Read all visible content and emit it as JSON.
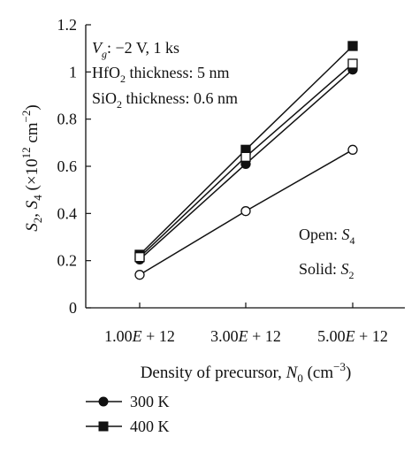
{
  "chart_data": {
    "type": "line",
    "x": [
      1000000000000.0,
      3000000000000.0,
      5000000000000.0
    ],
    "x_tick_labels": [
      {
        "mant": "1.00",
        "e": "E",
        "rest": " + 12"
      },
      {
        "mant": "3.00",
        "e": "E",
        "rest": " + 12"
      },
      {
        "mant": "5.00",
        "e": "E",
        "rest": " + 12"
      }
    ],
    "xlabel": {
      "main": "Density of precursor, ",
      "var": "N",
      "sub": "0",
      "unit": " (cm",
      "sup": "−3",
      "close": ")"
    },
    "ylabel": {
      "s": "S",
      "sub1": "2",
      "mid": ", ",
      "s2": "S",
      "sub2": "4",
      "rest": " (×10",
      "sup": "12",
      "unit": " cm",
      "sup2": "−2",
      "close": ")"
    },
    "ylim": [
      0,
      1.2
    ],
    "y_ticks": [
      0,
      0.2,
      0.4,
      0.6,
      0.8,
      1,
      1.2
    ],
    "y_tick_labels": [
      "0",
      "0.2",
      "0.4",
      "0.6",
      "0.8",
      "1",
      "1.2"
    ],
    "series": [
      {
        "name": "300 K",
        "marker": "circle",
        "fill": "solid",
        "values": [
          0.205,
          0.61,
          1.01
        ]
      },
      {
        "name": "300 K",
        "marker": "circle",
        "fill": "open",
        "values": [
          0.14,
          0.41,
          0.67
        ]
      },
      {
        "name": "400 K",
        "marker": "square",
        "fill": "solid",
        "values": [
          0.225,
          0.67,
          1.11
        ]
      },
      {
        "name": "400 K",
        "marker": "square",
        "fill": "open",
        "values": [
          0.215,
          0.64,
          1.035
        ]
      }
    ],
    "annotations": {
      "line1": {
        "var": "V",
        "sub": "g",
        "rest": ": −2 V, 1 ks"
      },
      "line2": {
        "pre": "HfO",
        "sub": "2",
        "rest": " thickness: 5 nm"
      },
      "line3": {
        "pre": "SiO",
        "sub": "2",
        "rest": " thickness: 0.6 nm"
      },
      "open": {
        "pre": "Open: ",
        "s": "S",
        "sub": "4"
      },
      "solid": {
        "pre": "Solid: ",
        "s": "S",
        "sub": "2"
      }
    },
    "legend": [
      {
        "label": "300 K",
        "marker": "circle"
      },
      {
        "label": "400 K",
        "marker": "square"
      }
    ],
    "legend_position": "bottom-left",
    "grid": false
  }
}
